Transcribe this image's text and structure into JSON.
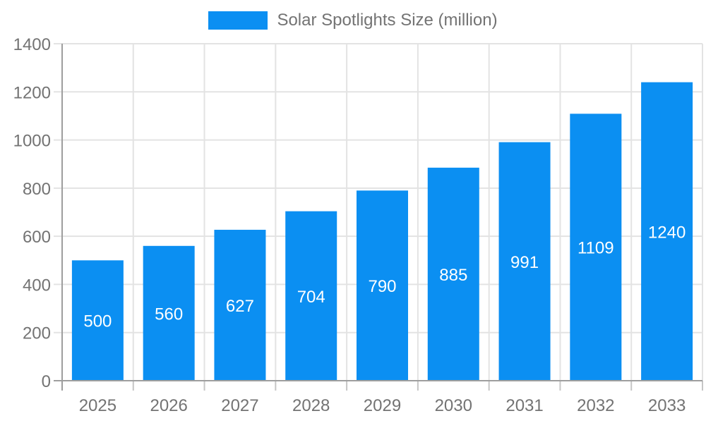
{
  "legend": {
    "label": "Solar Spotlights Size (million)"
  },
  "chart_data": {
    "type": "bar",
    "title": "Solar Spotlights Size (million)",
    "categories": [
      "2025",
      "2026",
      "2027",
      "2028",
      "2029",
      "2030",
      "2031",
      "2032",
      "2033"
    ],
    "values": [
      500,
      560,
      627,
      704,
      790,
      885,
      991,
      1109,
      1240
    ],
    "xlabel": "",
    "ylabel": "",
    "ylim": [
      0,
      1400
    ],
    "yticks": [
      0,
      200,
      400,
      600,
      800,
      1000,
      1200,
      1400
    ],
    "grid": true,
    "legend_position": "top-center",
    "value_label_position": "inside-center",
    "colors": {
      "bar": "#0b8ff2",
      "value_label": "#ffffff",
      "axis_text": "#737373",
      "grid_line": "#e3e3e3",
      "axis_line": "#9e9e9e",
      "tick_line": "#c6c6c6",
      "background": "#ffffff"
    }
  }
}
